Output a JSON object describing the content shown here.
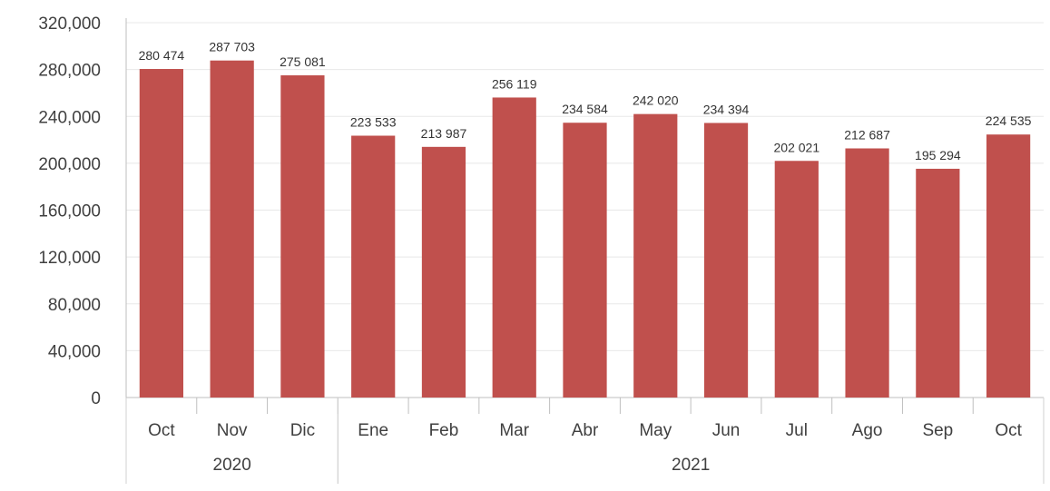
{
  "chart_data": {
    "type": "bar",
    "categories": [
      "Oct",
      "Nov",
      "Dic",
      "Ene",
      "Feb",
      "Mar",
      "Abr",
      "May",
      "Jun",
      "Jul",
      "Ago",
      "Sep",
      "Oct"
    ],
    "values": [
      280474,
      287703,
      275081,
      223533,
      213987,
      256119,
      234584,
      242020,
      234394,
      202021,
      212687,
      195294,
      224535
    ],
    "value_labels": [
      "280 474",
      "287 703",
      "275 081",
      "223 533",
      "213 987",
      "256 119",
      "234 584",
      "242 020",
      "234 394",
      "202 021",
      "212 687",
      "195 294",
      "224 535"
    ],
    "year_groups": [
      {
        "label": "2020",
        "start": 0,
        "end": 2
      },
      {
        "label": "2021",
        "start": 3,
        "end": 12
      }
    ],
    "y_ticks": [
      0,
      40000,
      80000,
      120000,
      160000,
      200000,
      240000,
      280000,
      320000
    ],
    "y_tick_labels": [
      "0",
      "40,000",
      "80,000",
      "120,000",
      "160,000",
      "200,000",
      "240,000",
      "280,000",
      "320,000"
    ],
    "ylim": [
      0,
      320000
    ],
    "title": "",
    "xlabel": "",
    "ylabel": "",
    "grid": true,
    "bar_color": "#c0504d",
    "grid_color": "#e8e8e8"
  }
}
